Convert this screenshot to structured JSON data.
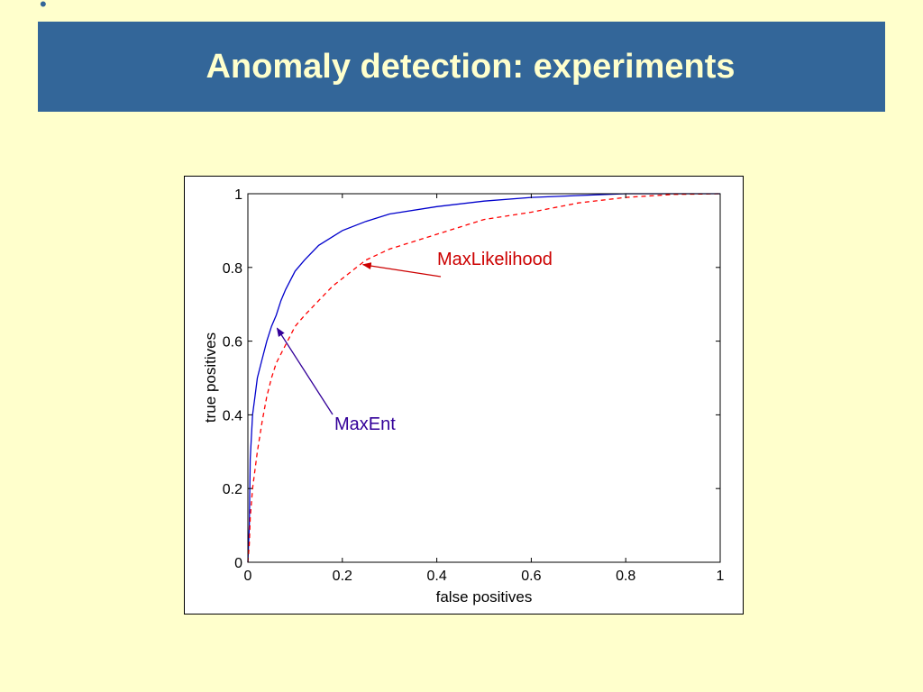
{
  "slide": {
    "bullet": "•",
    "title": "Anomaly detection: experiments"
  },
  "chart_data": {
    "type": "line",
    "xlabel": "false positives",
    "ylabel": "true positives",
    "xlim": [
      0,
      1
    ],
    "ylim": [
      0,
      1
    ],
    "x_ticks": [
      "0",
      "0.2",
      "0.4",
      "0.6",
      "0.8",
      "1"
    ],
    "y_ticks": [
      "0",
      "0.2",
      "0.4",
      "0.6",
      "0.8",
      "1"
    ],
    "grid": false,
    "series": [
      {
        "name": "MaxEnt",
        "style": "solid",
        "color": "#0000cc",
        "x": [
          0,
          0.003,
          0.005,
          0.01,
          0.015,
          0.02,
          0.03,
          0.04,
          0.05,
          0.06,
          0.07,
          0.08,
          0.1,
          0.12,
          0.15,
          0.2,
          0.25,
          0.3,
          0.4,
          0.5,
          0.6,
          0.7,
          0.8,
          0.9,
          1.0
        ],
        "y": [
          0,
          0.1,
          0.28,
          0.4,
          0.45,
          0.5,
          0.55,
          0.6,
          0.64,
          0.67,
          0.71,
          0.74,
          0.79,
          0.82,
          0.86,
          0.9,
          0.925,
          0.945,
          0.965,
          0.98,
          0.99,
          0.995,
          1.0,
          1.0,
          1.0
        ]
      },
      {
        "name": "MaxLikelihood",
        "style": "dashed",
        "color": "#ff0000",
        "x": [
          0,
          0.003,
          0.005,
          0.01,
          0.02,
          0.03,
          0.04,
          0.05,
          0.06,
          0.08,
          0.1,
          0.12,
          0.15,
          0.18,
          0.2,
          0.23,
          0.25,
          0.3,
          0.35,
          0.4,
          0.5,
          0.6,
          0.7,
          0.8,
          0.9,
          1.0
        ],
        "y": [
          0,
          0.05,
          0.12,
          0.2,
          0.3,
          0.38,
          0.45,
          0.5,
          0.54,
          0.59,
          0.64,
          0.67,
          0.71,
          0.75,
          0.77,
          0.8,
          0.82,
          0.85,
          0.87,
          0.89,
          0.93,
          0.95,
          0.975,
          0.99,
          0.998,
          1.0
        ]
      }
    ],
    "annotations": [
      {
        "text": "MaxLikelihood",
        "color": "#cc0000",
        "points_to": [
          0.24,
          0.81
        ]
      },
      {
        "text": "MaxEnt",
        "color": "#330099",
        "points_to": [
          0.06,
          0.64
        ]
      }
    ]
  }
}
